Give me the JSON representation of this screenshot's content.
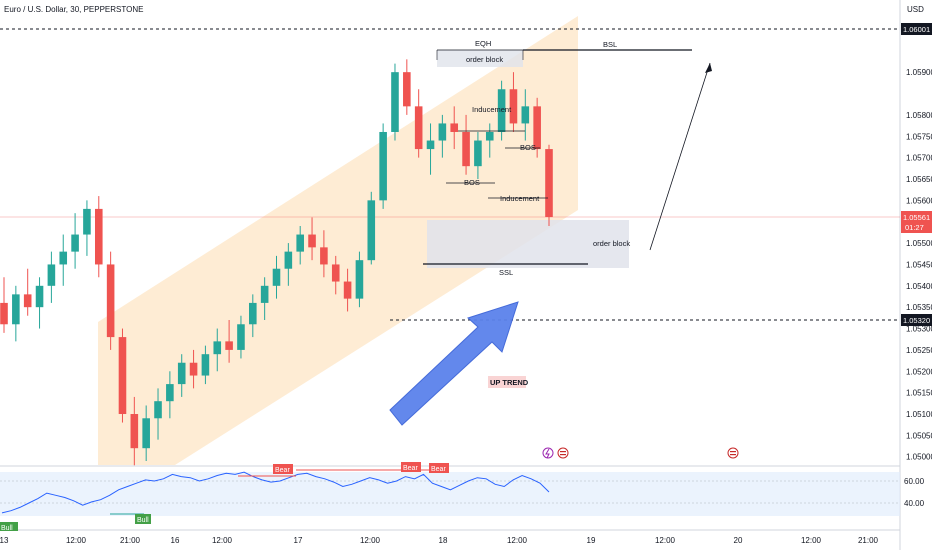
{
  "header": {
    "symbol_title": "Euro / U.S. Dollar, 30, PEPPERSTONE"
  },
  "currency_label": "USD",
  "price_axis": {
    "ticks": [
      "1.06001",
      "1.05900",
      "1.05800",
      "1.05750",
      "1.05700",
      "1.05650",
      "1.05600",
      "1.05500",
      "1.05450",
      "1.05400",
      "1.05350",
      "1.05300",
      "1.05250",
      "1.05200",
      "1.05150",
      "1.05100",
      "1.05050",
      "1.05000"
    ],
    "tick_values": [
      1.06001,
      1.059,
      1.058,
      1.0575,
      1.057,
      1.0565,
      1.056,
      1.055,
      1.0545,
      1.054,
      1.0535,
      1.053,
      1.0525,
      1.052,
      1.0515,
      1.051,
      1.0505,
      1.05
    ],
    "current_price": "1.05561",
    "countdown": "01:27",
    "level_1052": "1.05320",
    "level_1060": "1.06001"
  },
  "time_axis": {
    "labels": [
      "13",
      "12:00",
      "21:00",
      "16",
      "12:00",
      "17",
      "12:00",
      "18",
      "12:00",
      "19",
      "12:00",
      "20",
      "12:00",
      "21:00"
    ]
  },
  "oscillator_axis": {
    "labels": [
      "60.00",
      "40.00"
    ]
  },
  "annotations": {
    "eqh": "EQH",
    "bsl": "BSL",
    "ssl": "SSL",
    "order_block_top": "order block",
    "order_block_bottom": "order block",
    "inducement_1": "Inducement",
    "inducement_2": "Inducement",
    "bos_1": "BOS",
    "bos_2": "BOS",
    "up_trend": "UP TREND",
    "osc_bear_1": "Bear",
    "osc_bear_2": "Bear",
    "osc_bear_3": "Bear",
    "osc_bull_1": "Bull",
    "osc_bull_2": "Bull"
  },
  "colors": {
    "bull": "#26a69a",
    "bear": "#ef5350",
    "channel": "#fde6c6",
    "arrow": "#5f86ee",
    "osc_line": "#2962ff",
    "osc_band": "#e3eefc"
  },
  "chart_data": {
    "type": "candlestick",
    "symbol": "Euro / U.S. Dollar",
    "timeframe": "30",
    "broker": "PEPPERSTONE",
    "last_price": 1.05561,
    "ohlc": [
      [
        1.0536,
        1.0542,
        1.0529,
        1.0531
      ],
      [
        1.0531,
        1.054,
        1.0527,
        1.0538
      ],
      [
        1.0538,
        1.0544,
        1.0533,
        1.0535
      ],
      [
        1.0535,
        1.0542,
        1.053,
        1.054
      ],
      [
        1.054,
        1.0548,
        1.0536,
        1.0545
      ],
      [
        1.0545,
        1.0552,
        1.054,
        1.0548
      ],
      [
        1.0548,
        1.0557,
        1.0544,
        1.0552
      ],
      [
        1.0552,
        1.056,
        1.0547,
        1.0558
      ],
      [
        1.0558,
        1.0561,
        1.0542,
        1.0545
      ],
      [
        1.0545,
        1.0548,
        1.0525,
        1.0528
      ],
      [
        1.0528,
        1.053,
        1.0508,
        1.051
      ],
      [
        1.051,
        1.0514,
        1.0498,
        1.0502
      ],
      [
        1.0502,
        1.0512,
        1.0499,
        1.0509
      ],
      [
        1.0509,
        1.0516,
        1.0504,
        1.0513
      ],
      [
        1.0513,
        1.052,
        1.0509,
        1.0517
      ],
      [
        1.0517,
        1.0524,
        1.0514,
        1.0522
      ],
      [
        1.0522,
        1.0525,
        1.0516,
        1.0519
      ],
      [
        1.0519,
        1.0526,
        1.0517,
        1.0524
      ],
      [
        1.0524,
        1.053,
        1.052,
        1.0527
      ],
      [
        1.0527,
        1.0532,
        1.0522,
        1.0525
      ],
      [
        1.0525,
        1.0533,
        1.0523,
        1.0531
      ],
      [
        1.0531,
        1.0538,
        1.0528,
        1.0536
      ],
      [
        1.0536,
        1.0542,
        1.0532,
        1.054
      ],
      [
        1.054,
        1.0547,
        1.0537,
        1.0544
      ],
      [
        1.0544,
        1.055,
        1.054,
        1.0548
      ],
      [
        1.0548,
        1.0554,
        1.0545,
        1.0552
      ],
      [
        1.0552,
        1.0556,
        1.0546,
        1.0549
      ],
      [
        1.0549,
        1.0553,
        1.0542,
        1.0545
      ],
      [
        1.0545,
        1.0547,
        1.0538,
        1.0541
      ],
      [
        1.0541,
        1.0544,
        1.0534,
        1.0537
      ],
      [
        1.0537,
        1.0548,
        1.0535,
        1.0546
      ],
      [
        1.0546,
        1.0562,
        1.0545,
        1.056
      ],
      [
        1.056,
        1.0578,
        1.0558,
        1.0576
      ],
      [
        1.0576,
        1.0592,
        1.0574,
        1.059
      ],
      [
        1.059,
        1.0593,
        1.058,
        1.0582
      ],
      [
        1.0582,
        1.0586,
        1.057,
        1.0572
      ],
      [
        1.0572,
        1.0578,
        1.0566,
        1.0574
      ],
      [
        1.0574,
        1.058,
        1.057,
        1.0578
      ],
      [
        1.0578,
        1.0582,
        1.0572,
        1.0576
      ],
      [
        1.0576,
        1.058,
        1.0566,
        1.0568
      ],
      [
        1.0568,
        1.0576,
        1.0565,
        1.0574
      ],
      [
        1.0574,
        1.0578,
        1.057,
        1.0576
      ],
      [
        1.0576,
        1.0588,
        1.0574,
        1.0586
      ],
      [
        1.0586,
        1.059,
        1.0576,
        1.0578
      ],
      [
        1.0578,
        1.0586,
        1.0574,
        1.0582
      ],
      [
        1.0582,
        1.0584,
        1.057,
        1.0572
      ],
      [
        1.0572,
        1.0573,
        1.0554,
        1.05561
      ]
    ],
    "levels": {
      "EQH": 1.0593,
      "BSL": 1.0593,
      "SSL": 1.0546,
      "dashed_top": 1.06001,
      "dashed_bottom": 1.0532
    },
    "oscillator": {
      "range": [
        30,
        75
      ],
      "reference_lines": [
        60,
        40
      ],
      "values": [
        31,
        33,
        36,
        40,
        44,
        49,
        47,
        45,
        42,
        38,
        41,
        43,
        47,
        52,
        55,
        58,
        61,
        60,
        62,
        66,
        64,
        63,
        60,
        62,
        65,
        67,
        66,
        68,
        64,
        61,
        59,
        60,
        63,
        66,
        67,
        64,
        62,
        59,
        55,
        57,
        60,
        63,
        61,
        58,
        60,
        64,
        62,
        66,
        58,
        55,
        52,
        56,
        60,
        63,
        62,
        57,
        55,
        61,
        65,
        62,
        58,
        50
      ]
    }
  }
}
